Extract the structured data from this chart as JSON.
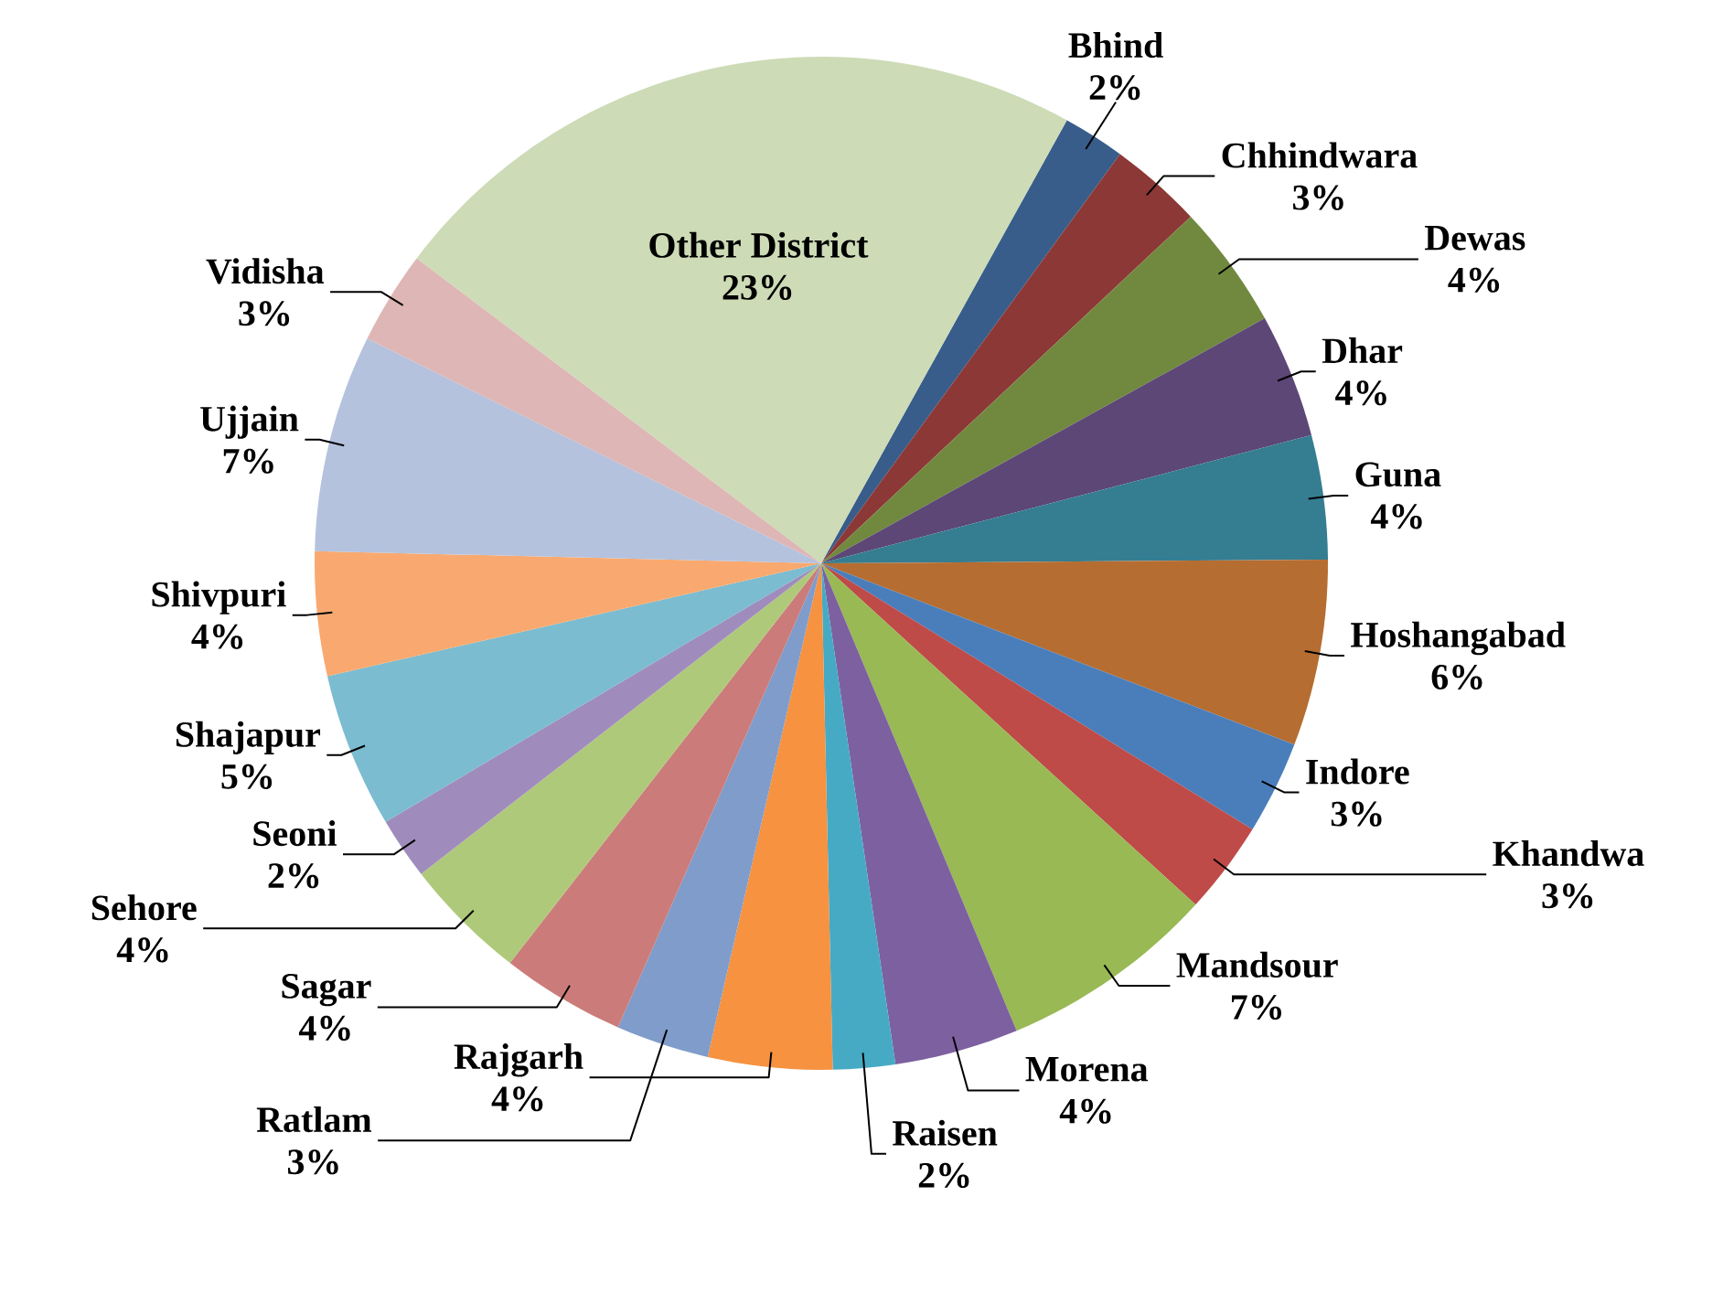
{
  "chart_data": {
    "type": "pie",
    "categories": [
      "Bhind",
      "Chhindwara",
      "Dewas",
      "Dhar",
      "Guna",
      "Hoshangabad",
      "Indore",
      "Khandwa",
      "Mandsour",
      "Morena",
      "Raisen",
      "Rajgarh",
      "Ratlam",
      "Sagar",
      "Sehore",
      "Seoni",
      "Shajapur",
      "Shivpuri",
      "Ujjain",
      "Vidisha",
      "Other District"
    ],
    "values": [
      2,
      3,
      4,
      4,
      4,
      6,
      3,
      3,
      7,
      4,
      2,
      4,
      3,
      4,
      4,
      2,
      5,
      4,
      7,
      3,
      23
    ],
    "value_labels": [
      "2%",
      "3%",
      "4%",
      "4%",
      "4%",
      "6%",
      "3%",
      "3%",
      "7%",
      "4%",
      "2%",
      "4%",
      "3%",
      "4%",
      "4%",
      "2%",
      "5%",
      "4%",
      "7%",
      "3%",
      "23%"
    ],
    "colors": [
      "#385d8a",
      "#8c3836",
      "#71893f",
      "#5c4776",
      "#357d91",
      "#b66d31",
      "#4a7ebb",
      "#be4b48",
      "#98b954",
      "#7d60a0",
      "#46aac5",
      "#f69240",
      "#7f9ccb",
      "#cb7c7a",
      "#afc97a",
      "#a08cbc",
      "#7bbcd0",
      "#f9a96f",
      "#b4c2de",
      "#deb6b5",
      "#cddbb6"
    ]
  }
}
